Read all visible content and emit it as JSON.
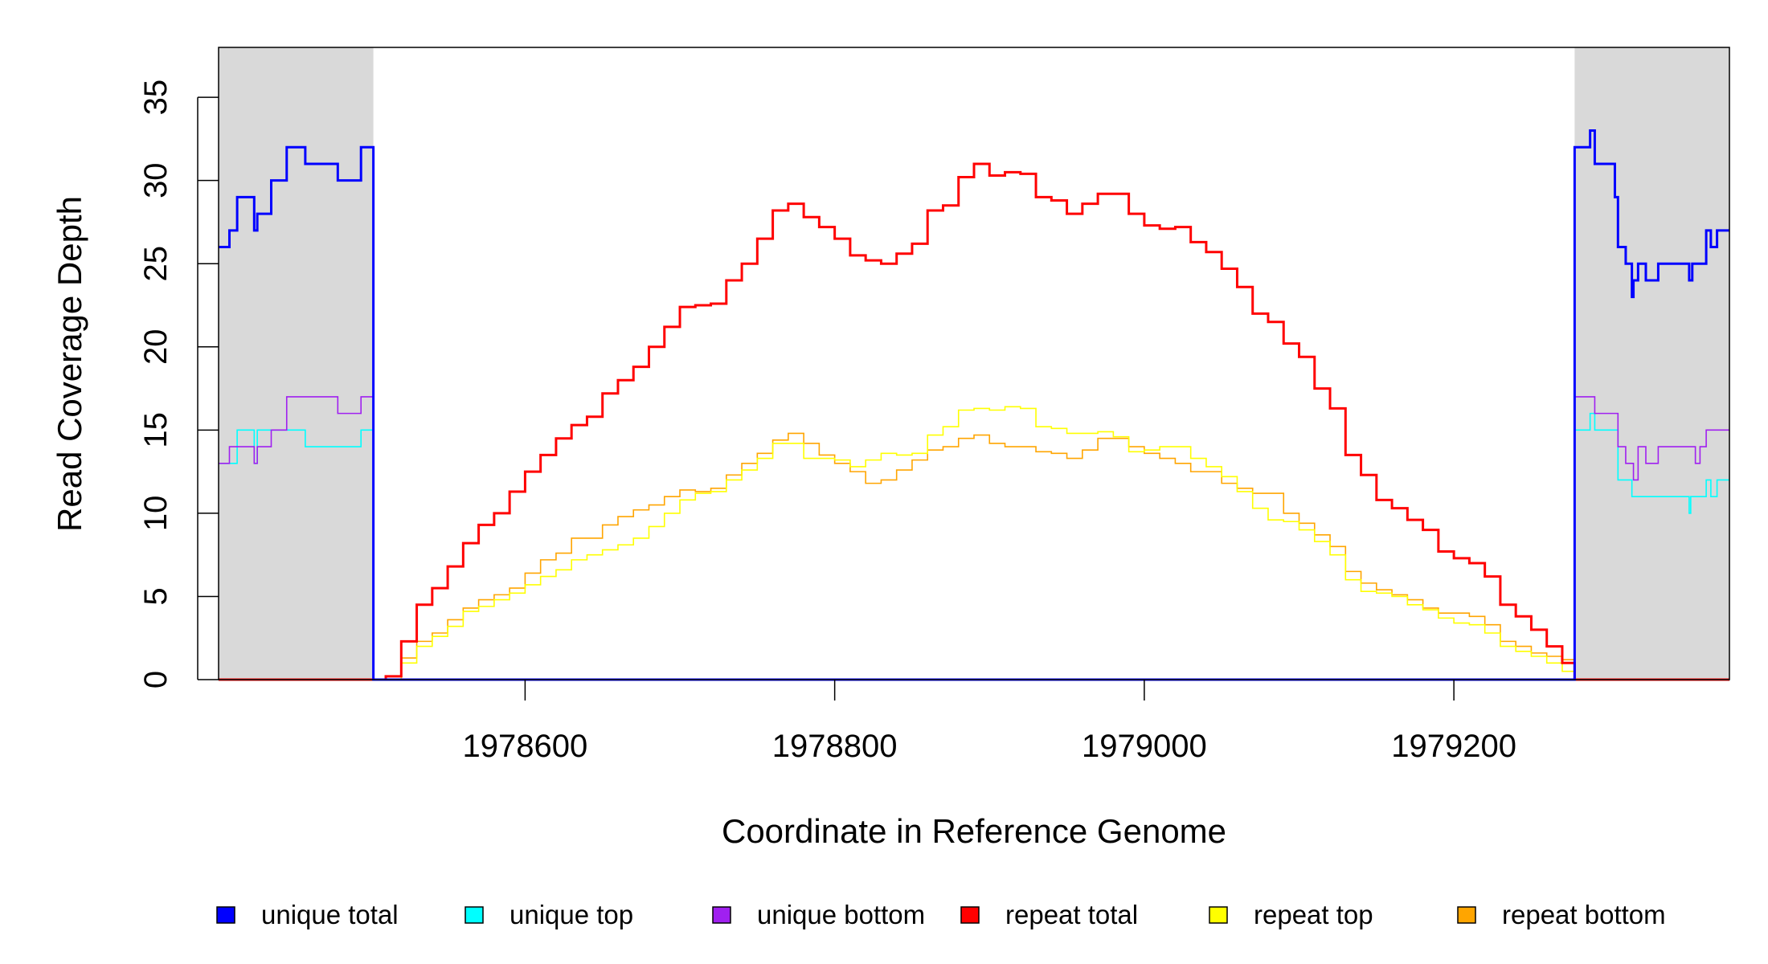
{
  "chart_data": {
    "type": "line",
    "title": "",
    "xlabel": "Coordinate in Reference Genome",
    "ylabel": "Read Coverage Depth",
    "xlim": [
      1978402,
      1979378
    ],
    "ylim": [
      0,
      38
    ],
    "x_ticks": [
      1978600,
      1978800,
      1979000,
      1979200
    ],
    "x_tick_labels": [
      "1978600",
      "1978800",
      "1979000",
      "1979200"
    ],
    "y_ticks": [
      0,
      5,
      10,
      15,
      20,
      25,
      30,
      35
    ],
    "y_tick_labels": [
      "0",
      "5",
      "10",
      "15",
      "20",
      "25",
      "30",
      "35"
    ],
    "grid": false,
    "shaded_regions": [
      [
        1978402,
        1978502
      ],
      [
        1979278,
        1979378
      ]
    ],
    "shade_color": "#d9d9d9",
    "legend_position": "bottom",
    "series": [
      {
        "name": "repeat bottom",
        "color": "#ffa500",
        "width": "thin",
        "x_start": 1978510,
        "x_step": 10,
        "x_end": 1979278,
        "values": [
          0,
          1.3,
          2.3,
          2.8,
          3.6,
          4.3,
          4.8,
          5.1,
          5.5,
          6.4,
          7.2,
          7.6,
          8.5,
          8.5,
          9.3,
          9.8,
          10.2,
          10.5,
          11,
          11.4,
          11.3,
          11.5,
          12.3,
          13,
          13.6,
          14.4,
          14.8,
          14.2,
          13.5,
          13,
          12.5,
          11.8,
          12,
          12.6,
          13.2,
          13.8,
          14,
          14.5,
          14.7,
          14.2,
          14,
          14,
          13.7,
          13.6,
          13.3,
          13.8,
          14.5,
          14.5,
          14,
          13.6,
          13.3,
          13,
          12.5,
          12.5,
          11.8,
          11.5,
          11.2,
          11.2,
          10,
          9.4,
          8.7,
          8,
          6.5,
          5.8,
          5.4,
          5.1,
          4.8,
          4.3,
          4,
          4,
          3.8,
          3.3,
          2.3,
          2,
          1.6,
          1.4,
          1.2
        ]
      },
      {
        "name": "repeat top",
        "color": "#ffff00",
        "width": "thin",
        "x_start": 1978510,
        "x_step": 10,
        "x_end": 1979278,
        "values": [
          0,
          1,
          2,
          2.6,
          3.2,
          4.1,
          4.4,
          4.8,
          5.2,
          5.7,
          6.2,
          6.6,
          7.2,
          7.5,
          7.8,
          8.1,
          8.5,
          9.2,
          10,
          10.8,
          11.2,
          11.3,
          12,
          12.6,
          13.3,
          14.2,
          14.2,
          13.3,
          13.3,
          13.2,
          12.8,
          13.2,
          13.6,
          13.5,
          13.6,
          14.7,
          15.2,
          16.2,
          16.3,
          16.2,
          16.4,
          16.3,
          15.2,
          15.1,
          14.8,
          14.8,
          14.9,
          14.6,
          13.7,
          13.8,
          14,
          14,
          13.3,
          12.8,
          12.2,
          11.3,
          10.3,
          9.6,
          9.5,
          9,
          8.3,
          7.5,
          6,
          5.3,
          5.2,
          5,
          4.5,
          4.2,
          3.7,
          3.4,
          3.3,
          2.8,
          2,
          1.7,
          1.4,
          1,
          0.5
        ]
      },
      {
        "name": "repeat total",
        "color": "#ff0000",
        "width": "thick",
        "x_start": 1978510,
        "x_step": 10,
        "x_end": 1979278,
        "values": [
          0.2,
          2.3,
          4.5,
          5.5,
          6.8,
          8.2,
          9.3,
          10,
          11.3,
          12.5,
          13.5,
          14.5,
          15.3,
          15.8,
          17.2,
          18,
          18.8,
          20,
          21.2,
          22.4,
          22.5,
          22.6,
          24,
          25,
          26.5,
          28.2,
          28.6,
          27.8,
          27.2,
          26.5,
          25.5,
          25.2,
          25,
          25.6,
          26.2,
          28.2,
          28.5,
          30.2,
          31,
          30.3,
          30.5,
          30.4,
          29,
          28.8,
          28,
          28.6,
          29.2,
          29.2,
          28,
          27.3,
          27.1,
          27.2,
          26.3,
          25.7,
          24.7,
          23.6,
          22,
          21.5,
          20.2,
          19.4,
          17.5,
          16.3,
          13.5,
          12.3,
          10.8,
          10.3,
          9.6,
          9,
          7.7,
          7.3,
          7,
          6.2,
          4.5,
          3.8,
          3,
          2,
          1
        ]
      },
      {
        "name": "unique top",
        "color": "#00ffff",
        "width": "thin",
        "points": [
          [
            1978402,
            13
          ],
          [
            1978414,
            15
          ],
          [
            1978425,
            13
          ],
          [
            1978427,
            15
          ],
          [
            1978458,
            14
          ],
          [
            1978494,
            15
          ],
          [
            1978502,
            0
          ],
          [
            1979278,
            15
          ],
          [
            1979288,
            16
          ],
          [
            1979291,
            15
          ],
          [
            1979306,
            12
          ],
          [
            1979315,
            11
          ],
          [
            1979352,
            10
          ],
          [
            1979353,
            11
          ],
          [
            1979363,
            12
          ],
          [
            1979366,
            11
          ],
          [
            1979370,
            12
          ]
        ]
      },
      {
        "name": "unique bottom",
        "color": "#a020f0",
        "width": "thin",
        "points": [
          [
            1978402,
            13
          ],
          [
            1978409,
            14
          ],
          [
            1978425,
            13
          ],
          [
            1978427,
            14
          ],
          [
            1978436,
            15
          ],
          [
            1978446,
            17
          ],
          [
            1978479,
            16
          ],
          [
            1978494,
            17
          ],
          [
            1978502,
            0
          ],
          [
            1979278,
            17
          ],
          [
            1979291,
            16
          ],
          [
            1979306,
            14
          ],
          [
            1979311,
            13
          ],
          [
            1979316,
            12
          ],
          [
            1979319,
            14
          ],
          [
            1979324,
            13
          ],
          [
            1979332,
            14
          ],
          [
            1979356,
            13
          ],
          [
            1979359,
            14
          ],
          [
            1979363,
            15
          ]
        ]
      },
      {
        "name": "unique total",
        "color": "#0000ff",
        "width": "thick",
        "points": [
          [
            1978402,
            26
          ],
          [
            1978409,
            27
          ],
          [
            1978414,
            29
          ],
          [
            1978425,
            27
          ],
          [
            1978427,
            28
          ],
          [
            1978436,
            30
          ],
          [
            1978446,
            32
          ],
          [
            1978458,
            31
          ],
          [
            1978479,
            30
          ],
          [
            1978494,
            32
          ],
          [
            1978502,
            0
          ],
          [
            1979278,
            32
          ],
          [
            1979288,
            33
          ],
          [
            1979291,
            31
          ],
          [
            1979304,
            29
          ],
          [
            1979306,
            26
          ],
          [
            1979311,
            25
          ],
          [
            1979315,
            23
          ],
          [
            1979316,
            24
          ],
          [
            1979319,
            25
          ],
          [
            1979324,
            24
          ],
          [
            1979332,
            25
          ],
          [
            1979352,
            24
          ],
          [
            1979354,
            25
          ],
          [
            1979359,
            25
          ],
          [
            1979363,
            27
          ],
          [
            1979366,
            26
          ],
          [
            1979370,
            27
          ]
        ]
      }
    ],
    "legend": [
      {
        "label": "unique total",
        "color": "#0000ff"
      },
      {
        "label": "unique top",
        "color": "#00ffff"
      },
      {
        "label": "unique bottom",
        "color": "#a020f0"
      },
      {
        "label": "repeat total",
        "color": "#ff0000"
      },
      {
        "label": "repeat top",
        "color": "#ffff00"
      },
      {
        "label": "repeat bottom",
        "color": "#ffa500"
      }
    ]
  }
}
